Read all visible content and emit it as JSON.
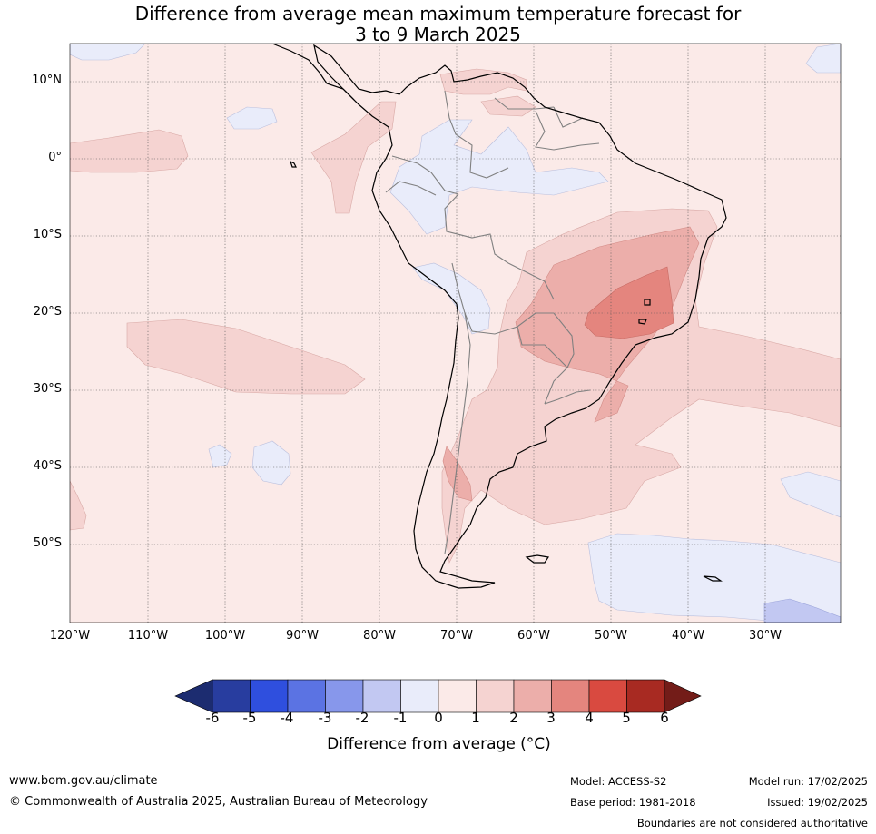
{
  "title": {
    "line1": "Difference from average mean maximum temperature forecast for",
    "line2": "3 to 9 March 2025"
  },
  "map": {
    "lat_labels": [
      "10°N",
      "0°",
      "10°S",
      "20°S",
      "30°S",
      "40°S",
      "50°S"
    ],
    "lon_labels": [
      "120°W",
      "110°W",
      "100°W",
      "90°W",
      "80°W",
      "70°W",
      "60°W",
      "50°W",
      "40°W",
      "30°W"
    ],
    "colors": {
      "ocean_base": "#fbeae8",
      "warm_1_2": "#f5d3d1",
      "warm_2_3": "#ecaeaa",
      "warm_3_4": "#e4857e",
      "cool_0_-1": "#e9ecfa",
      "cool_-1_-2": "#c2c8f2",
      "land_outline": "#000000",
      "border_outline": "#808080",
      "grid": "#555555"
    }
  },
  "colorbar": {
    "ticks": [
      "-6",
      "-5",
      "-4",
      "-3",
      "-2",
      "-1",
      "0",
      "1",
      "2",
      "3",
      "4",
      "5",
      "6"
    ],
    "colors": [
      "#283d9f",
      "#2f4fde",
      "#5b73e3",
      "#8797eb",
      "#c2c8f2",
      "#e9ecfa",
      "#fbeae8",
      "#f5d3d1",
      "#ecaeaa",
      "#e4857e",
      "#d94a40",
      "#a82a22"
    ],
    "under_color": "#1c2c70",
    "over_color": "#731c18",
    "label": "Difference from average (°C)"
  },
  "footer": {
    "website": "www.bom.gov.au/climate",
    "copyright": "© Commonwealth of Australia 2025, Australian Bureau of Meteorology",
    "model": "Model: ACCESS-S2",
    "base_period": "Base period: 1981-2018",
    "model_run": "Model run: 17/02/2025",
    "issued": "Issued: 19/02/2025",
    "disclaimer": "Boundaries are not considered authoritative"
  }
}
